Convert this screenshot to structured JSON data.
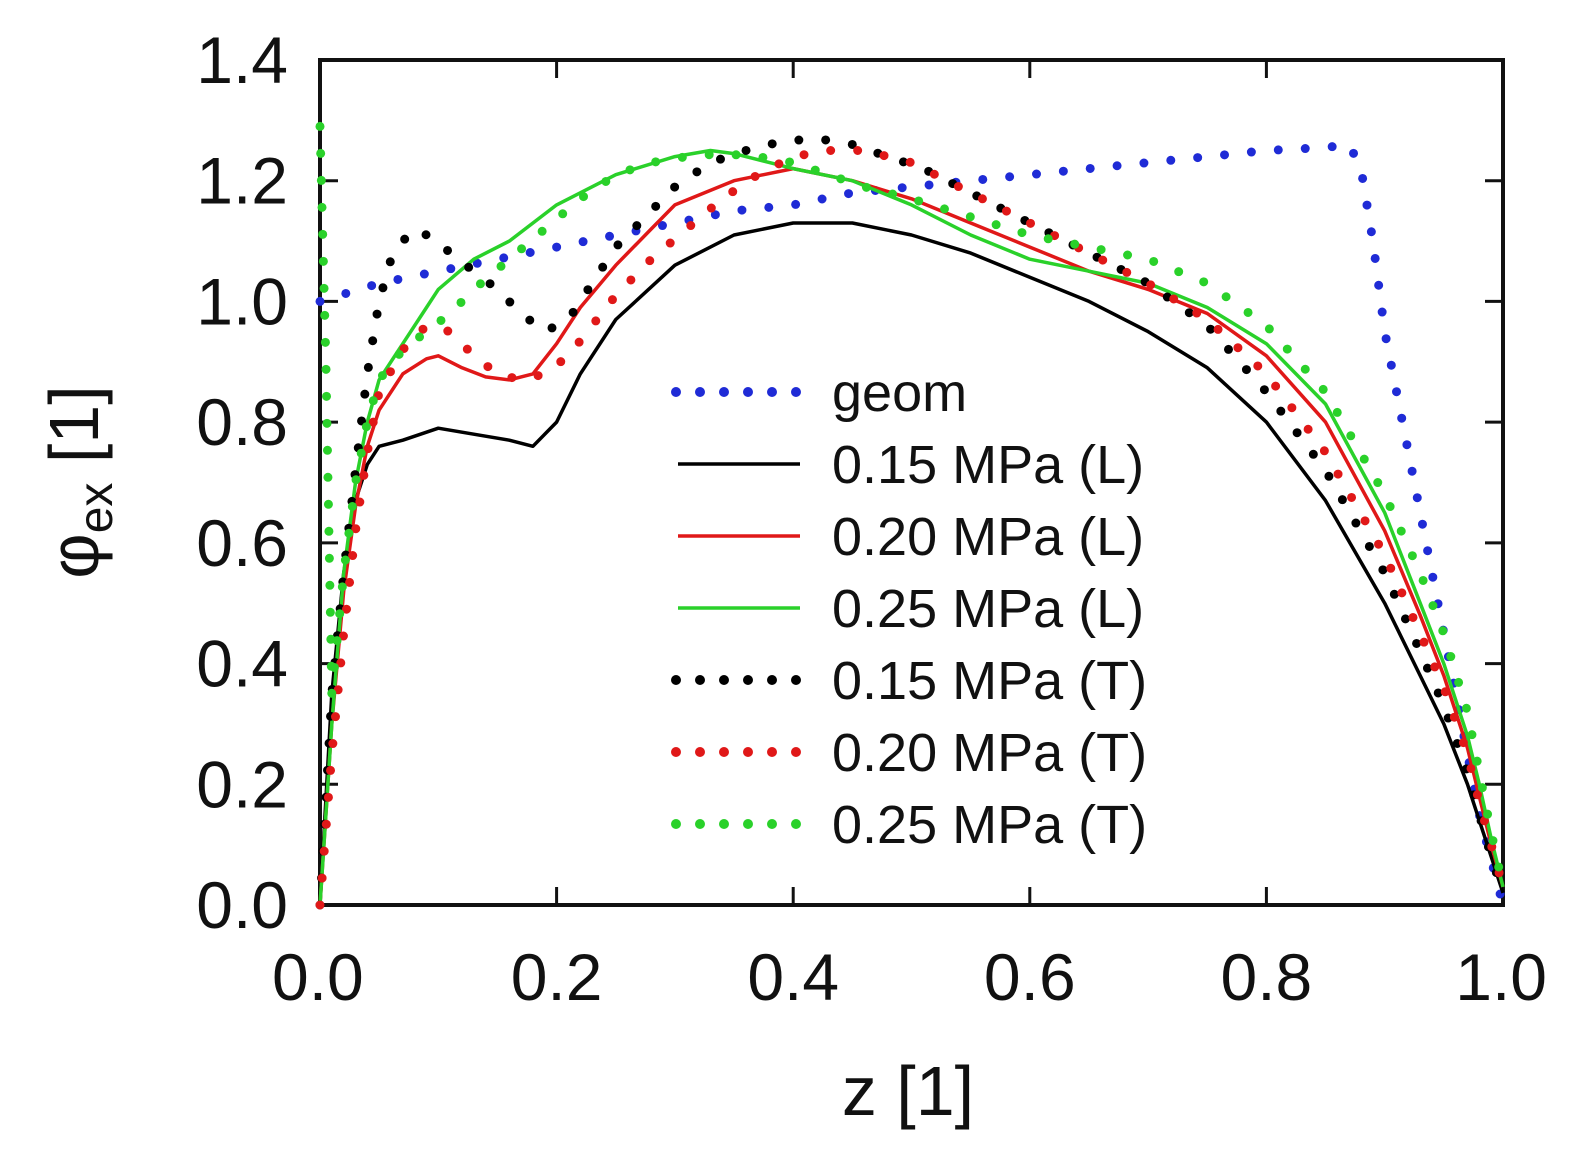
{
  "chart_data": {
    "type": "line",
    "title": "",
    "xlabel": "z [1]",
    "ylabel_main": "φ",
    "ylabel_sub": "ex",
    "ylabel_unit": " [1]",
    "xlim": [
      0.0,
      1.0
    ],
    "ylim": [
      0.0,
      1.4
    ],
    "xticks": [
      "0.0",
      "0.2",
      "0.4",
      "0.6",
      "0.8",
      "1.0"
    ],
    "yticks": [
      "0.0",
      "0.2",
      "0.4",
      "0.6",
      "0.8",
      "1.0",
      "1.2",
      "1.4"
    ],
    "grid": false,
    "legend_position": "center-right",
    "series": [
      {
        "name": "geom",
        "color": "#1f2bd6",
        "style": "dotted",
        "x": [
          0.0,
          0.05,
          0.1,
          0.15,
          0.2,
          0.25,
          0.3,
          0.35,
          0.4,
          0.45,
          0.5,
          0.55,
          0.6,
          0.65,
          0.7,
          0.75,
          0.8,
          0.85,
          0.87,
          0.88,
          0.89,
          0.9,
          0.92,
          0.94,
          0.96,
          0.98,
          1.0
        ],
        "y": [
          1.0,
          1.03,
          1.05,
          1.07,
          1.09,
          1.11,
          1.13,
          1.15,
          1.16,
          1.18,
          1.19,
          1.2,
          1.21,
          1.22,
          1.23,
          1.24,
          1.25,
          1.255,
          1.26,
          1.22,
          1.1,
          0.95,
          0.75,
          0.55,
          0.35,
          0.15,
          0.0
        ]
      },
      {
        "name": "0.15 MPa (L)",
        "color": "#000000",
        "style": "solid",
        "x": [
          0.0,
          0.01,
          0.02,
          0.03,
          0.04,
          0.05,
          0.07,
          0.1,
          0.13,
          0.16,
          0.18,
          0.2,
          0.22,
          0.25,
          0.3,
          0.35,
          0.4,
          0.45,
          0.5,
          0.55,
          0.6,
          0.65,
          0.7,
          0.75,
          0.8,
          0.85,
          0.9,
          0.93,
          0.95,
          0.97,
          0.98,
          0.99,
          1.0
        ],
        "y": [
          0.0,
          0.35,
          0.55,
          0.67,
          0.73,
          0.76,
          0.77,
          0.79,
          0.78,
          0.77,
          0.76,
          0.8,
          0.88,
          0.97,
          1.06,
          1.11,
          1.13,
          1.13,
          1.11,
          1.08,
          1.04,
          1.0,
          0.95,
          0.89,
          0.8,
          0.67,
          0.5,
          0.38,
          0.3,
          0.2,
          0.14,
          0.08,
          0.02
        ]
      },
      {
        "name": "0.20 MPa (L)",
        "color": "#e01818",
        "style": "solid",
        "x": [
          0.0,
          0.01,
          0.02,
          0.03,
          0.04,
          0.05,
          0.07,
          0.09,
          0.1,
          0.12,
          0.14,
          0.16,
          0.18,
          0.2,
          0.22,
          0.25,
          0.28,
          0.3,
          0.35,
          0.4,
          0.45,
          0.5,
          0.55,
          0.6,
          0.65,
          0.7,
          0.75,
          0.8,
          0.85,
          0.9,
          0.93,
          0.95,
          0.97,
          0.98,
          0.99,
          1.0
        ],
        "y": [
          0.0,
          0.3,
          0.52,
          0.66,
          0.76,
          0.82,
          0.88,
          0.905,
          0.91,
          0.89,
          0.875,
          0.87,
          0.88,
          0.93,
          0.99,
          1.06,
          1.12,
          1.16,
          1.2,
          1.22,
          1.2,
          1.17,
          1.13,
          1.09,
          1.05,
          1.02,
          0.98,
          0.91,
          0.8,
          0.62,
          0.48,
          0.38,
          0.26,
          0.18,
          0.1,
          0.03
        ]
      },
      {
        "name": "0.25 MPa (L)",
        "color": "#2ad12a",
        "style": "solid",
        "x": [
          0.0,
          0.01,
          0.02,
          0.03,
          0.04,
          0.05,
          0.07,
          0.09,
          0.1,
          0.13,
          0.16,
          0.2,
          0.25,
          0.3,
          0.33,
          0.35,
          0.38,
          0.4,
          0.45,
          0.5,
          0.55,
          0.6,
          0.65,
          0.7,
          0.75,
          0.8,
          0.85,
          0.9,
          0.93,
          0.95,
          0.97,
          0.98,
          0.99,
          1.0
        ],
        "y": [
          0.0,
          0.3,
          0.55,
          0.7,
          0.8,
          0.87,
          0.93,
          0.99,
          1.02,
          1.07,
          1.1,
          1.16,
          1.21,
          1.24,
          1.25,
          1.245,
          1.23,
          1.22,
          1.2,
          1.16,
          1.11,
          1.07,
          1.05,
          1.03,
          0.99,
          0.93,
          0.83,
          0.65,
          0.5,
          0.4,
          0.28,
          0.2,
          0.11,
          0.03
        ]
      },
      {
        "name": "0.15 MPa (T)",
        "color": "#000000",
        "style": "dotted",
        "x": [
          0.0,
          0.01,
          0.02,
          0.03,
          0.04,
          0.05,
          0.06,
          0.07,
          0.08,
          0.09,
          0.1,
          0.11,
          0.13,
          0.15,
          0.17,
          0.19,
          0.21,
          0.23,
          0.25,
          0.28,
          0.3,
          0.33,
          0.36,
          0.39,
          0.42,
          0.45,
          0.48,
          0.51,
          0.55,
          0.6,
          0.65,
          0.7,
          0.75,
          0.8,
          0.85,
          0.9,
          0.93,
          0.95,
          0.97,
          0.98,
          0.99,
          1.0
        ],
        "y": [
          0.0,
          0.35,
          0.55,
          0.72,
          0.88,
          1.0,
          1.07,
          1.1,
          1.12,
          1.11,
          1.1,
          1.08,
          1.05,
          1.02,
          0.98,
          0.95,
          0.97,
          1.03,
          1.09,
          1.15,
          1.19,
          1.23,
          1.25,
          1.265,
          1.27,
          1.26,
          1.24,
          1.22,
          1.18,
          1.13,
          1.08,
          1.03,
          0.96,
          0.85,
          0.72,
          0.55,
          0.42,
          0.33,
          0.22,
          0.15,
          0.08,
          0.02
        ]
      },
      {
        "name": "0.20 MPa (T)",
        "color": "#e01818",
        "style": "dotted",
        "x": [
          0.0,
          0.01,
          0.02,
          0.03,
          0.04,
          0.05,
          0.07,
          0.09,
          0.11,
          0.13,
          0.15,
          0.17,
          0.19,
          0.21,
          0.23,
          0.25,
          0.28,
          0.31,
          0.34,
          0.37,
          0.4,
          0.43,
          0.46,
          0.5,
          0.55,
          0.6,
          0.65,
          0.7,
          0.75,
          0.8,
          0.85,
          0.9,
          0.93,
          0.95,
          0.97,
          0.98,
          0.99,
          1.0
        ],
        "y": [
          0.0,
          0.25,
          0.45,
          0.62,
          0.75,
          0.85,
          0.92,
          0.96,
          0.95,
          0.91,
          0.88,
          0.87,
          0.88,
          0.91,
          0.96,
          1.01,
          1.07,
          1.12,
          1.17,
          1.21,
          1.24,
          1.25,
          1.25,
          1.23,
          1.18,
          1.13,
          1.08,
          1.03,
          0.97,
          0.88,
          0.75,
          0.58,
          0.45,
          0.36,
          0.25,
          0.17,
          0.1,
          0.03
        ]
      },
      {
        "name": "0.25 MPa (T)",
        "color": "#2ad12a",
        "style": "dotted",
        "x": [
          0.0,
          0.005,
          0.01,
          0.02,
          0.03,
          0.04,
          0.05,
          0.07,
          0.09,
          0.11,
          0.13,
          0.16,
          0.19,
          0.22,
          0.25,
          0.28,
          0.31,
          0.34,
          0.37,
          0.4,
          0.43,
          0.46,
          0.5,
          0.55,
          0.6,
          0.65,
          0.7,
          0.75,
          0.8,
          0.85,
          0.9,
          0.93,
          0.95,
          0.97,
          0.98,
          0.99,
          1.0
        ],
        "y": [
          1.29,
          0.9,
          0.35,
          0.55,
          0.7,
          0.8,
          0.87,
          0.92,
          0.95,
          0.98,
          1.02,
          1.07,
          1.12,
          1.17,
          1.21,
          1.23,
          1.24,
          1.245,
          1.24,
          1.23,
          1.21,
          1.19,
          1.17,
          1.14,
          1.11,
          1.09,
          1.07,
          1.03,
          0.96,
          0.85,
          0.68,
          0.55,
          0.45,
          0.32,
          0.22,
          0.12,
          0.03
        ]
      }
    ]
  }
}
